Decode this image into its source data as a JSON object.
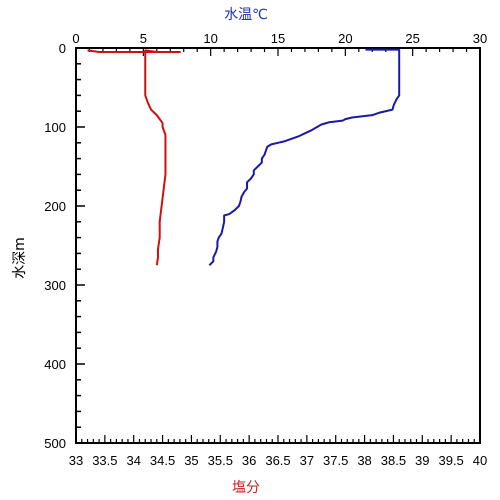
{
  "chart_data": {
    "type": "line",
    "title": "",
    "axes": {
      "y": {
        "label": "水深m",
        "range": [
          0,
          500
        ],
        "ticks": [
          "0",
          "100",
          "200",
          "300",
          "400",
          "500"
        ],
        "inverted": true
      },
      "x_top": {
        "label": "水温℃",
        "label_color": "#2233aa",
        "range": [
          0,
          30
        ],
        "ticks": [
          "0",
          "5",
          "10",
          "15",
          "20",
          "25",
          "30"
        ]
      },
      "x_bottom": {
        "label": "塩分",
        "label_color": "#cc2222",
        "range": [
          33,
          40
        ],
        "ticks": [
          "33",
          "33.5",
          "34",
          "34.5",
          "35",
          "35.5",
          "36",
          "36.5",
          "37",
          "37.5",
          "38",
          "38.5",
          "39",
          "39.5",
          "40"
        ]
      }
    },
    "grid": false,
    "series": [
      {
        "axis": "x_top",
        "color": "#1a1aaa",
        "points": [
          [
            21.5,
            2
          ],
          [
            24,
            2
          ],
          [
            24,
            5
          ],
          [
            24,
            40
          ],
          [
            24,
            60
          ],
          [
            23.8,
            65
          ],
          [
            23.6,
            72
          ],
          [
            23.5,
            78
          ],
          [
            22.5,
            82
          ],
          [
            22,
            85
          ],
          [
            20.5,
            88
          ],
          [
            20,
            90
          ],
          [
            19.8,
            92
          ],
          [
            18.8,
            94
          ],
          [
            18.2,
            97
          ],
          [
            18,
            99
          ],
          [
            17.8,
            101
          ],
          [
            17.5,
            104
          ],
          [
            17,
            108
          ],
          [
            16.5,
            112
          ],
          [
            16,
            115
          ],
          [
            15.5,
            118
          ],
          [
            15,
            120
          ],
          [
            14.5,
            122
          ],
          [
            14.2,
            125
          ],
          [
            14.1,
            130
          ],
          [
            14,
            135
          ],
          [
            13.8,
            140
          ],
          [
            13.8,
            145
          ],
          [
            13.5,
            150
          ],
          [
            13.2,
            155
          ],
          [
            13.2,
            160
          ],
          [
            13,
            165
          ],
          [
            12.7,
            170
          ],
          [
            12.7,
            178
          ],
          [
            12.5,
            182
          ],
          [
            12.3,
            188
          ],
          [
            12.2,
            195
          ],
          [
            12.1,
            200
          ],
          [
            11.8,
            205
          ],
          [
            11.4,
            210
          ],
          [
            11,
            212
          ],
          [
            11,
            220
          ],
          [
            10.9,
            228
          ],
          [
            10.8,
            235
          ],
          [
            10.6,
            240
          ],
          [
            10.5,
            245
          ],
          [
            10.5,
            252
          ],
          [
            10.4,
            258
          ],
          [
            10.2,
            265
          ],
          [
            10.2,
            270
          ],
          [
            9.9,
            275
          ]
        ]
      },
      {
        "axis": "x_bottom",
        "color": "#cc1111",
        "points": [
          [
            33.2,
            3
          ],
          [
            33.4,
            5
          ],
          [
            34.8,
            5
          ],
          [
            34.4,
            5
          ],
          [
            34.2,
            3
          ],
          [
            34.2,
            10
          ],
          [
            34.2,
            30
          ],
          [
            34.2,
            50
          ],
          [
            34.2,
            60
          ],
          [
            34.25,
            70
          ],
          [
            34.3,
            78
          ],
          [
            34.4,
            85
          ],
          [
            34.45,
            90
          ],
          [
            34.5,
            95
          ],
          [
            34.5,
            100
          ],
          [
            34.55,
            110
          ],
          [
            34.55,
            130
          ],
          [
            34.55,
            160
          ],
          [
            34.5,
            190
          ],
          [
            34.45,
            220
          ],
          [
            34.45,
            240
          ],
          [
            34.42,
            255
          ],
          [
            34.42,
            265
          ],
          [
            34.4,
            275
          ]
        ]
      }
    ]
  }
}
